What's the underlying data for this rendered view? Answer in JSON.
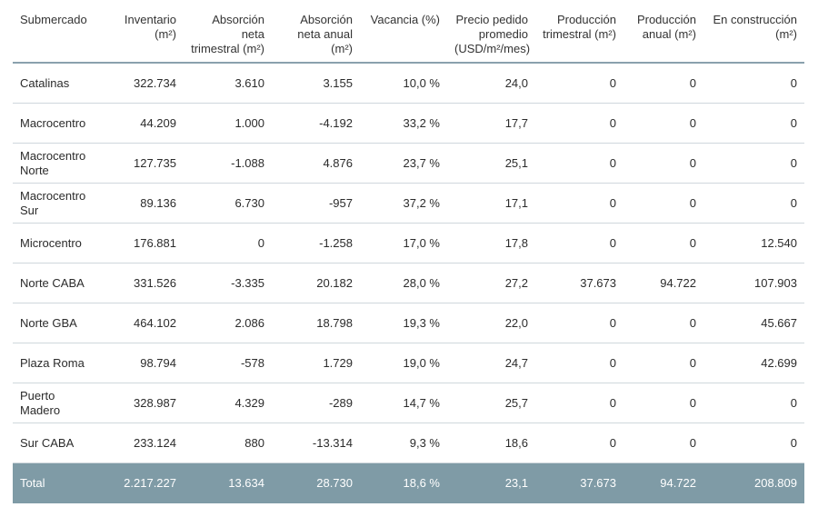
{
  "headers": [
    "Submercado",
    "Inventario (m²)",
    "Absorción neta trimestral (m²)",
    "Absorción neta anual (m²)",
    "Vacancia (%)",
    "Precio pedido promedio (USD/m²/mes)",
    "Producción trimestral (m²)",
    "Producción anual (m²)",
    "En construcción (m²)"
  ],
  "rows": [
    [
      "Catalinas",
      "322.734",
      "3.610",
      "3.155",
      "10,0 %",
      "24,0",
      "0",
      "0",
      "0"
    ],
    [
      "Macrocentro",
      "44.209",
      "1.000",
      "-4.192",
      "33,2 %",
      "17,7",
      "0",
      "0",
      "0"
    ],
    [
      "Macrocentro Norte",
      "127.735",
      "-1.088",
      "4.876",
      "23,7 %",
      "25,1",
      "0",
      "0",
      "0"
    ],
    [
      "Macrocentro Sur",
      "89.136",
      "6.730",
      "-957",
      "37,2 %",
      "17,1",
      "0",
      "0",
      "0"
    ],
    [
      "Microcentro",
      "176.881",
      "0",
      "-1.258",
      "17,0 %",
      "17,8",
      "0",
      "0",
      "12.540"
    ],
    [
      "Norte CABA",
      "331.526",
      "-3.335",
      "20.182",
      "28,0 %",
      "27,2",
      "37.673",
      "94.722",
      "107.903"
    ],
    [
      "Norte GBA",
      "464.102",
      "2.086",
      "18.798",
      "19,3 %",
      "22,0",
      "0",
      "0",
      "45.667"
    ],
    [
      "Plaza Roma",
      "98.794",
      "-578",
      "1.729",
      "19,0 %",
      "24,7",
      "0",
      "0",
      "42.699"
    ],
    [
      "Puerto Madero",
      "328.987",
      "4.329",
      "-289",
      "14,7 %",
      "25,7",
      "0",
      "0",
      "0"
    ],
    [
      "Sur CABA",
      "233.124",
      "880",
      "-13.314",
      "9,3 %",
      "18,6",
      "0",
      "0",
      "0"
    ]
  ],
  "total": [
    "Total",
    "2.217.227",
    "13.634",
    "28.730",
    "18,6 %",
    "23,1",
    "37.673",
    "94.722",
    "208.809"
  ],
  "colors": {
    "total_bg": "#7f9ba6",
    "header_rule": "#8aa1ad",
    "row_rule": "#cfd7dc"
  }
}
